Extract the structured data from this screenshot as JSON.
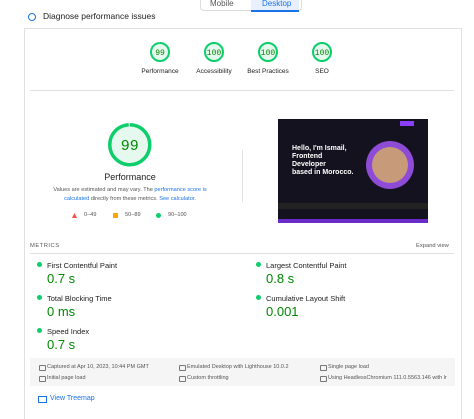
{
  "tabs": [
    "Mobile",
    "Desktop"
  ],
  "heading": "Diagnose performance issues",
  "scores": [
    {
      "value": 99,
      "label": "Performance"
    },
    {
      "value": 100,
      "label": "Accessibility"
    },
    {
      "value": 100,
      "label": "Best Practices"
    },
    {
      "value": 100,
      "label": "SEO"
    }
  ],
  "main_score": {
    "value": 99,
    "label": "Performance"
  },
  "note": {
    "part1": "Values are estimated and may vary. The ",
    "link1": "performance score is calculated",
    "part2": " directly from these metrics. ",
    "link2": "See calculator",
    "part3": "."
  },
  "legend": [
    "0–49",
    "50–89",
    "90–100"
  ],
  "screenshot": {
    "lines": [
      "Hello, I'm Ismail,",
      "Frontend",
      "Developer",
      "based in Morocco."
    ]
  },
  "metrics_title": "METRICS",
  "expand": "Expand view",
  "metrics": [
    {
      "label": "First Contentful Paint",
      "value": "0.7 s"
    },
    {
      "label": "Largest Contentful Paint",
      "value": "0.8 s"
    },
    {
      "label": "Total Blocking Time",
      "value": "0 ms"
    },
    {
      "label": "Cumulative Layout Shift",
      "value": "0.001"
    },
    {
      "label": "Speed Index",
      "value": "0.7 s"
    }
  ],
  "footer": [
    "Captured at Apr 10, 2023, 10:44 PM GMT",
    "Emulated Desktop with Lighthouse 10.0.2",
    "Single page load",
    "Initial page load",
    "Custom throttling",
    "Using HeadlessChromium 111.0.5563.146 with lr"
  ],
  "treemap": "View Treemap"
}
